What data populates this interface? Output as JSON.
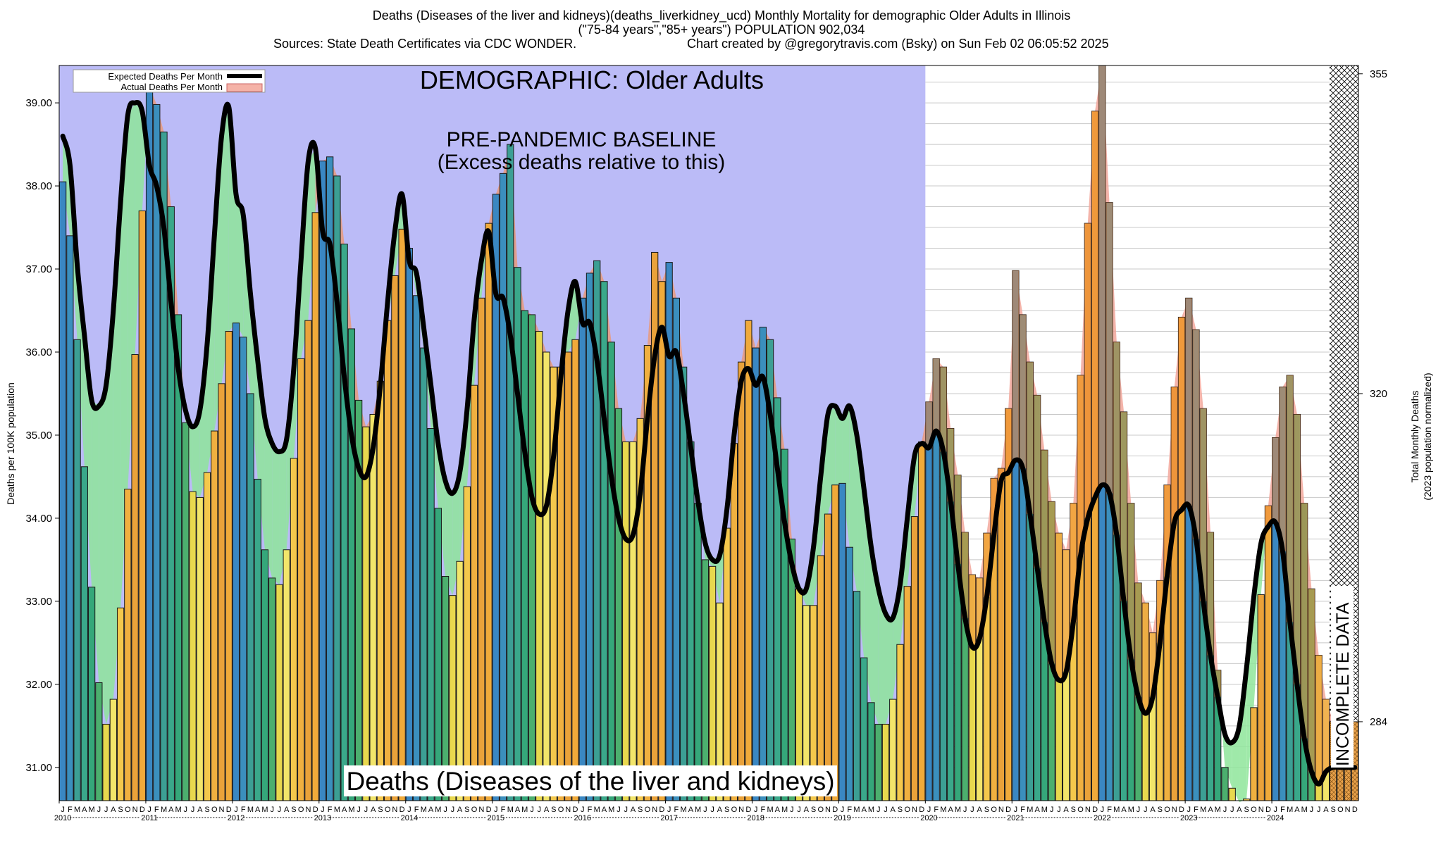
{
  "header": {
    "title_line1": "Deaths (Diseases of the liver and kidneys)(deaths_liverkidney_ucd) Monthly Mortality for demographic Older Adults in Illinois",
    "title_line2": "(\"75-84 years\",\"85+ years\") POPULATION 902,034",
    "sources": "Sources: State Death Certificates via CDC WONDER.",
    "credit": "Chart created by @gregorytravis.com (Bsky) on Sun Feb 02 06:05:52 2025"
  },
  "labels": {
    "demographic": "DEMOGRAPHIC: Older Adults",
    "baseline_line1": "PRE-PANDEMIC BASELINE",
    "baseline_line2": "(Excess deaths relative to this)",
    "bottom_title": "Deaths (Diseases of the liver and kidneys)",
    "incomplete": "INCOMPLETE DATA",
    "legend_expected": "Expected Deaths Per Month",
    "legend_actual": "Actual Deaths Per Month"
  },
  "chart_data": {
    "type": "bar",
    "ylabel": "Deaths per 100K population",
    "y2label_line1": "Total Monthly Deaths",
    "y2label_line2": "(2023 population normalized)",
    "ylim": [
      30.6,
      39.45
    ],
    "yticks": [
      "31.00",
      "32.00",
      "33.00",
      "34.00",
      "35.00",
      "36.00",
      "37.00",
      "38.00",
      "39.00"
    ],
    "y2ticks": [
      {
        "label": "284",
        "value": 31.55
      },
      {
        "label": "320",
        "value": 35.5
      },
      {
        "label": "355",
        "value": 39.35
      }
    ],
    "month_letters": [
      "J",
      "F",
      "M",
      "A",
      "M",
      "J",
      "J",
      "A",
      "S",
      "O",
      "N",
      "D"
    ],
    "years": [
      "2010",
      "2011",
      "2012",
      "2013",
      "2014",
      "2015",
      "2016",
      "2017",
      "2018",
      "2019",
      "2020",
      "2021",
      "2022",
      "2023",
      "2024"
    ],
    "baseline_end_index": 120,
    "incomplete_start_index": 176,
    "series": [
      {
        "name": "Actual Deaths Per Month",
        "values": [
          38.05,
          37.4,
          36.15,
          34.62,
          33.17,
          32.02,
          31.52,
          31.82,
          32.92,
          34.35,
          35.97,
          37.7,
          39.2,
          38.98,
          38.65,
          37.75,
          36.45,
          35.15,
          34.32,
          34.25,
          34.55,
          35.05,
          35.62,
          36.25,
          36.35,
          36.18,
          35.5,
          34.47,
          33.62,
          33.28,
          33.2,
          33.62,
          34.72,
          35.92,
          36.38,
          37.68,
          38.3,
          38.35,
          38.12,
          37.3,
          36.28,
          35.42,
          35.1,
          35.25,
          35.65,
          36.38,
          36.92,
          37.48,
          37.25,
          36.68,
          36.05,
          35.08,
          34.12,
          33.3,
          33.07,
          33.48,
          34.38,
          35.6,
          36.65,
          37.55,
          37.9,
          38.15,
          38.5,
          37.02,
          36.5,
          36.45,
          36.25,
          36.0,
          35.82,
          35.82,
          36.0,
          36.15,
          36.65,
          36.95,
          37.1,
          36.85,
          36.12,
          35.32,
          34.92,
          34.92,
          35.2,
          36.08,
          37.2,
          36.85,
          37.08,
          36.65,
          35.82,
          34.92,
          34.18,
          33.5,
          33.42,
          32.98,
          33.88,
          34.9,
          35.88,
          36.38,
          36.05,
          36.3,
          36.15,
          35.45,
          34.83,
          33.75,
          33.15,
          32.95,
          32.95,
          33.55,
          34.05,
          34.4,
          34.42,
          33.65,
          33.12,
          32.32,
          31.78,
          31.52,
          31.52,
          31.82,
          32.48,
          33.18,
          34.02,
          34.92,
          35.4,
          35.92,
          35.82,
          35.08,
          34.52,
          33.83,
          33.32,
          33.28,
          33.82,
          34.48,
          34.6,
          35.32,
          36.98,
          36.45,
          35.88,
          35.48,
          34.82,
          34.2,
          33.82,
          33.62,
          34.18,
          35.72,
          37.55,
          38.9,
          39.45,
          37.8,
          36.12,
          35.28,
          34.18,
          33.22,
          32.98,
          32.62,
          33.25,
          34.4,
          35.58,
          36.42,
          36.65,
          36.27,
          35.32,
          33.83,
          32.17,
          31.0,
          30.75,
          30.58,
          30.62,
          31.72,
          33.08,
          34.15,
          34.97,
          35.58,
          35.72,
          35.25,
          34.18,
          33.15,
          32.35,
          31.82,
          31.55,
          31.55,
          31.55,
          31.55
        ]
      },
      {
        "name": "Expected Deaths Per Month",
        "values": [
          38.6,
          38.25,
          37.05,
          36.2,
          35.42,
          35.35,
          35.6,
          36.5,
          37.8,
          38.85,
          39.0,
          38.9,
          38.25,
          38.0,
          37.5,
          36.6,
          35.8,
          35.3,
          35.1,
          35.3,
          36.1,
          37.4,
          38.6,
          38.95,
          37.9,
          37.65,
          36.7,
          35.9,
          35.2,
          34.9,
          34.8,
          34.95,
          35.8,
          37.1,
          38.3,
          38.45,
          37.45,
          37.3,
          36.6,
          35.7,
          35.0,
          34.6,
          34.5,
          34.85,
          35.6,
          36.6,
          37.45,
          37.9,
          37.1,
          36.95,
          36.3,
          35.6,
          34.9,
          34.45,
          34.3,
          34.55,
          35.3,
          36.4,
          37.1,
          37.45,
          36.7,
          36.65,
          36.2,
          35.5,
          34.8,
          34.25,
          34.05,
          34.15,
          34.75,
          35.7,
          36.5,
          36.85,
          36.35,
          36.35,
          35.9,
          35.2,
          34.5,
          34.0,
          33.75,
          33.8,
          34.3,
          35.2,
          35.95,
          36.3,
          35.95,
          36.0,
          35.5,
          34.85,
          34.2,
          33.7,
          33.5,
          33.55,
          34.1,
          35.0,
          35.65,
          35.8,
          35.6,
          35.7,
          35.25,
          34.6,
          33.95,
          33.45,
          33.15,
          33.15,
          33.65,
          34.5,
          35.25,
          35.35,
          35.2,
          35.35,
          35.0,
          34.35,
          33.65,
          33.15,
          32.85,
          32.8,
          33.2,
          34.0,
          34.75,
          34.9,
          34.85,
          35.05,
          34.8,
          34.2,
          33.45,
          32.8,
          32.45,
          32.55,
          33.05,
          33.8,
          34.45,
          34.55,
          34.7,
          34.6,
          34.05,
          33.4,
          32.75,
          32.25,
          32.05,
          32.15,
          32.75,
          33.55,
          34.0,
          34.25,
          34.4,
          34.3,
          33.8,
          33.0,
          32.3,
          31.85,
          31.65,
          31.85,
          32.5,
          33.3,
          33.95,
          34.1,
          34.15,
          33.75,
          33.0,
          32.35,
          31.85,
          31.4,
          31.3,
          31.5,
          32.2,
          33.05,
          33.7,
          33.9,
          33.95,
          33.6,
          32.75,
          32.0,
          31.35,
          30.95,
          30.8,
          30.95,
          31.0,
          31.0,
          31.0,
          31.0
        ]
      }
    ]
  }
}
